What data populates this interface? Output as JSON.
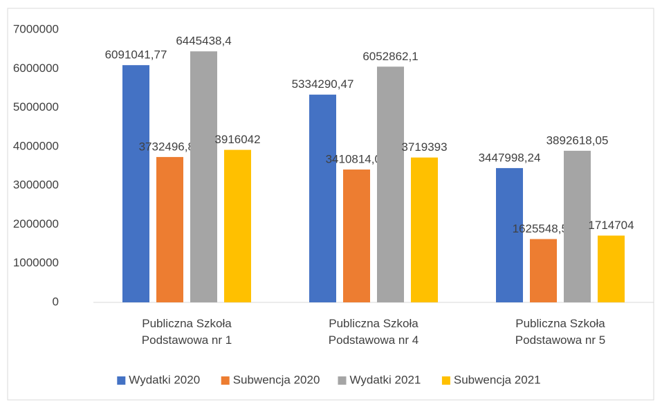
{
  "chart_data": {
    "type": "bar",
    "categories": [
      "Publiczna Szkoła Podstawowa nr 1",
      "Publiczna Szkoła Podstawowa nr 4",
      "Publiczna Szkoła Podstawowa nr 5"
    ],
    "series": [
      {
        "name": "Wydatki 2020",
        "color": "#4472c4",
        "values": [
          6091041.77,
          5334290.47,
          3447998.24
        ],
        "value_labels": [
          "6091041,77",
          "5334290,47",
          "3447998,24"
        ]
      },
      {
        "name": "Subwencja 2020",
        "color": "#ed7d31",
        "values": [
          3732496.88,
          3410814.09,
          1625548.52
        ],
        "value_labels": [
          "3732496,88",
          "3410814,09",
          "1625548,52"
        ]
      },
      {
        "name": "Wydatki 2021",
        "color": "#a5a5a5",
        "values": [
          6445438.4,
          6052862.1,
          3892618.05
        ],
        "value_labels": [
          "6445438,4",
          "6052862,1",
          "3892618,05"
        ]
      },
      {
        "name": "Subwencja 2021",
        "color": "#ffc000",
        "values": [
          3916042,
          3719393,
          1714704
        ],
        "value_labels": [
          "3916042",
          "3719393",
          "1714704"
        ]
      }
    ],
    "ylim": [
      0,
      7000000
    ],
    "yticks": [
      0,
      1000000,
      2000000,
      3000000,
      4000000,
      5000000,
      6000000,
      7000000
    ],
    "grid": false,
    "legend": "bottom"
  }
}
